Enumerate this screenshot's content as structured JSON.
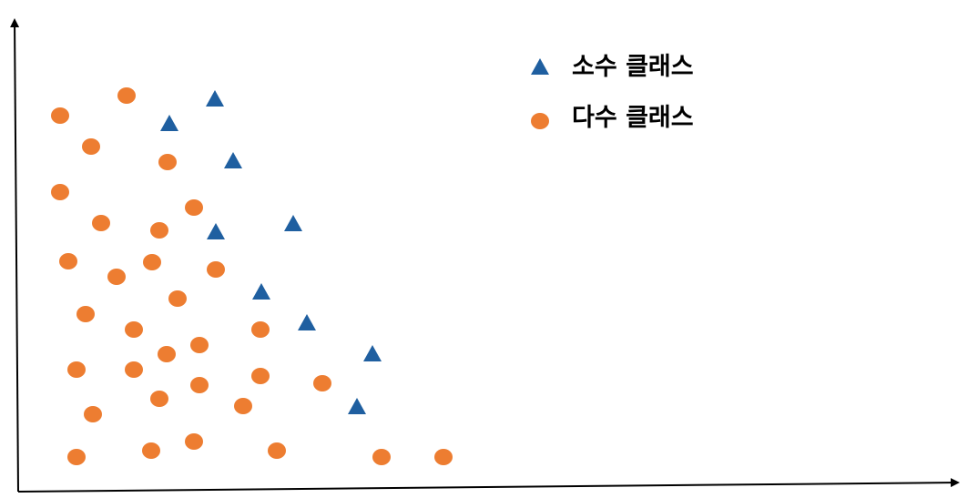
{
  "chart_data": {
    "type": "scatter",
    "title": "",
    "xlabel": "",
    "ylabel": "",
    "grid": false,
    "legend_placement": "top-right",
    "series": [
      {
        "name": "소수 클래스",
        "marker": "triangle",
        "color": "#1f5fa0",
        "points": [
          [
            236,
            108
          ],
          [
            186,
            135
          ],
          [
            256,
            176
          ],
          [
            237,
            254
          ],
          [
            322,
            245
          ],
          [
            287,
            320
          ],
          [
            337,
            354
          ],
          [
            409,
            388
          ],
          [
            392,
            446
          ]
        ]
      },
      {
        "name": "다수 클래스",
        "marker": "circle",
        "color": "#ed7d31",
        "points": [
          [
            139,
            105
          ],
          [
            66,
            127
          ],
          [
            100,
            161
          ],
          [
            184,
            178
          ],
          [
            66,
            211
          ],
          [
            213,
            228
          ],
          [
            111,
            245
          ],
          [
            175,
            253
          ],
          [
            75,
            287
          ],
          [
            167,
            288
          ],
          [
            128,
            304
          ],
          [
            237,
            296
          ],
          [
            195,
            328
          ],
          [
            94,
            345
          ],
          [
            147,
            362
          ],
          [
            286,
            362
          ],
          [
            219,
            379
          ],
          [
            183,
            389
          ],
          [
            84,
            406
          ],
          [
            147,
            406
          ],
          [
            286,
            413
          ],
          [
            219,
            423
          ],
          [
            354,
            421
          ],
          [
            175,
            438
          ],
          [
            267,
            446
          ],
          [
            102,
            455
          ],
          [
            84,
            502
          ],
          [
            166,
            495
          ],
          [
            213,
            485
          ],
          [
            304,
            495
          ],
          [
            419,
            502
          ],
          [
            487,
            502
          ]
        ]
      }
    ]
  }
}
